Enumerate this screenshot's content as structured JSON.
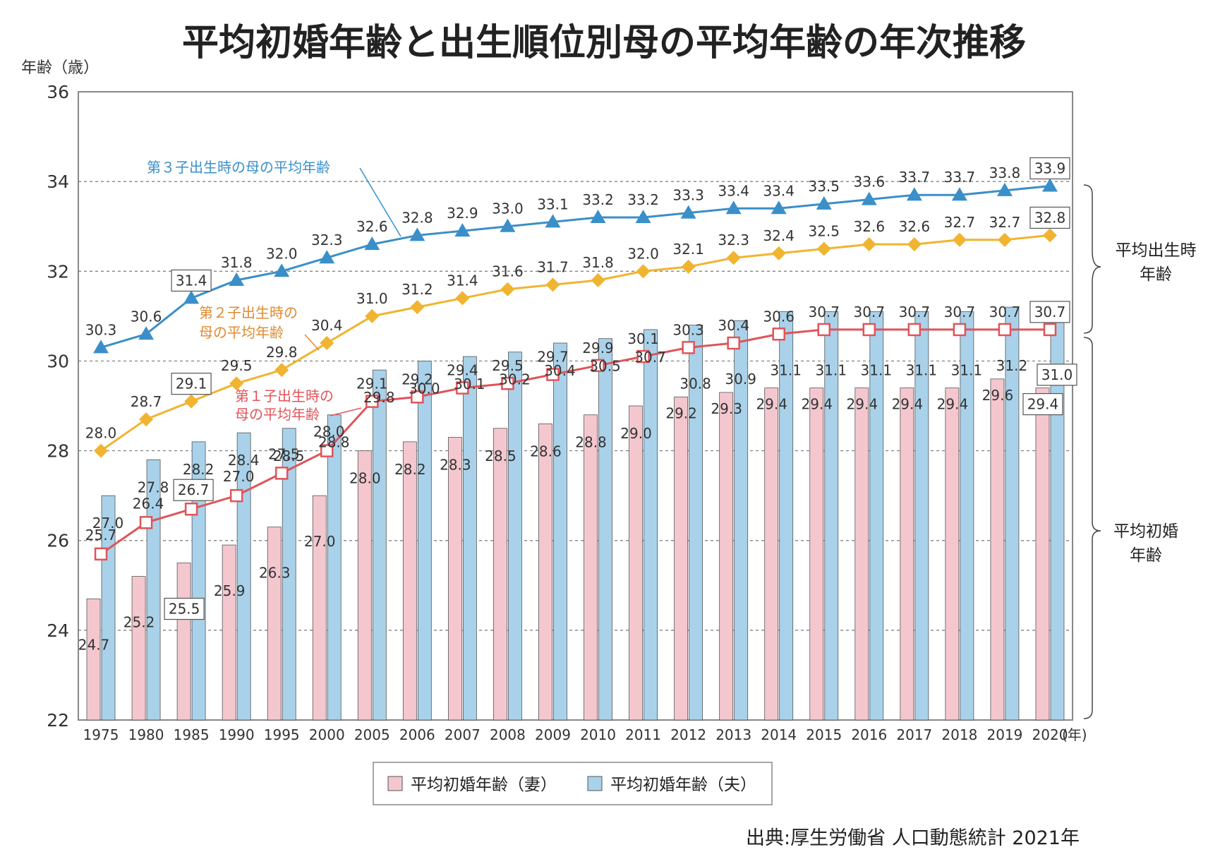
{
  "title": "平均初婚年齢と出生順位別母の平均年齢の年次推移",
  "source": "出典:厚生労働省 人口動態統計 2021年",
  "colors": {
    "third_child": "#3a8fc8",
    "second_child": "#f0b430",
    "first_child": "#e0545a",
    "wife_bar": "#f4c7cf",
    "husband_bar": "#a9d2ea",
    "bar_stroke": "#555555",
    "annotation_orange": "#e08a30"
  },
  "chart_data": {
    "type": "bar",
    "title": "平均初婚年齢と出生順位別母の平均年齢の年次推移",
    "ylabel": "年齢（歳）",
    "xlabel": "(年)",
    "ylim": [
      22,
      36
    ],
    "yticks": [
      22,
      24,
      26,
      28,
      30,
      32,
      34,
      36
    ],
    "grid": true,
    "categories": [
      "1975",
      "1980",
      "1985",
      "1990",
      "1995",
      "2000",
      "2005",
      "2006",
      "2007",
      "2008",
      "2009",
      "2010",
      "2011",
      "2012",
      "2013",
      "2014",
      "2015",
      "2016",
      "2017",
      "2018",
      "2019",
      "2020"
    ],
    "bar_series": [
      {
        "name": "平均初婚年齢（妻）",
        "values": [
          24.7,
          25.2,
          25.5,
          25.9,
          26.3,
          27.0,
          28.0,
          28.2,
          28.3,
          28.5,
          28.6,
          28.8,
          29.0,
          29.2,
          29.3,
          29.4,
          29.4,
          29.4,
          29.4,
          29.4,
          29.6,
          29.4
        ]
      },
      {
        "name": "平均初婚年齢（夫）",
        "values": [
          27.0,
          27.8,
          28.2,
          28.4,
          28.5,
          28.8,
          29.8,
          30.0,
          30.1,
          30.2,
          30.4,
          30.5,
          30.7,
          30.8,
          30.9,
          31.1,
          31.1,
          31.1,
          31.1,
          31.1,
          31.2,
          31.0
        ]
      }
    ],
    "line_series": [
      {
        "name": "第３子出生時の母の平均年齢",
        "marker": "triangle",
        "values": [
          30.3,
          30.6,
          31.4,
          31.8,
          32.0,
          32.3,
          32.6,
          32.8,
          32.9,
          33.0,
          33.1,
          33.2,
          33.2,
          33.3,
          33.4,
          33.4,
          33.5,
          33.6,
          33.7,
          33.7,
          33.8,
          33.9
        ]
      },
      {
        "name": "第２子出生時の母の平均年齢",
        "marker": "diamond",
        "values": [
          28.0,
          28.7,
          29.1,
          29.5,
          29.8,
          30.4,
          31.0,
          31.2,
          31.4,
          31.6,
          31.7,
          31.8,
          32.0,
          32.1,
          32.3,
          32.4,
          32.5,
          32.6,
          32.6,
          32.7,
          32.7,
          32.8
        ]
      },
      {
        "name": "第１子出生時の母の平均年齢",
        "marker": "square",
        "values": [
          25.7,
          26.4,
          26.7,
          27.0,
          27.5,
          28.0,
          29.1,
          29.2,
          29.4,
          29.5,
          29.7,
          29.9,
          30.1,
          30.3,
          30.4,
          30.6,
          30.7,
          30.7,
          30.7,
          30.7,
          30.7,
          30.7
        ]
      }
    ],
    "annotations": {
      "third_child": "第３子出生時の母の平均年齢",
      "second_child_line1": "第２子出生時の",
      "second_child_line2": "母の平均年齢",
      "first_child_line1": "第１子出生時の",
      "first_child_line2": "母の平均年齢"
    },
    "brace_labels": {
      "birth_line1": "平均出生時",
      "birth_line2": "年齢",
      "marriage_line1": "平均初婚",
      "marriage_line2": "年齢"
    },
    "legend": [
      "平均初婚年齢（妻）",
      "平均初婚年齢（夫）"
    ],
    "legend_position": "bottom-center"
  }
}
